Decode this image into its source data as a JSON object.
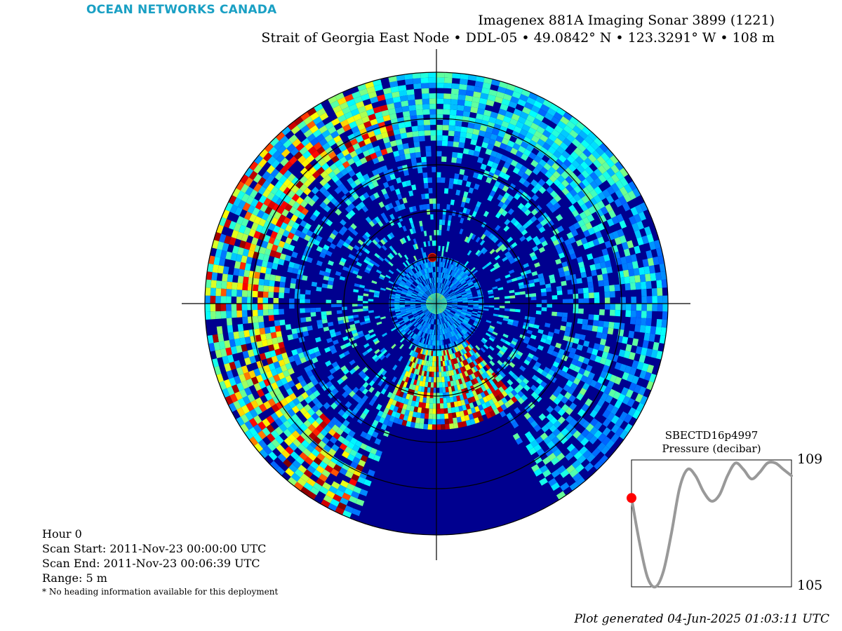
{
  "brand": {
    "logo_text": "OCEAN NETWORKS CANADA",
    "color": "#1aa0c4"
  },
  "header": {
    "title": "Imagenex 881A Imaging Sonar 3899 (1221)",
    "subtitle": "Strait of Georgia East Node • DDL-05 • 49.0842° N • 123.3291° W • 108 m"
  },
  "info": {
    "hour": "Hour 0",
    "scan_start": "Scan Start: 2011-Nov-23 00:00:00 UTC",
    "scan_end": "Scan End: 2011-Nov-23 00:06:39 UTC",
    "range": "Range: 5 m",
    "note": "* No heading information available for this deployment"
  },
  "footer": {
    "generated": "Plot generated 04-Jun-2025 01:03:11 UTC"
  },
  "chart_data": [
    {
      "type": "heatmap",
      "subtype": "polar sonar intensity",
      "range_m": 5,
      "colormap": "jet",
      "background_color": "#00008f",
      "range_rings": 5,
      "crosshair": true,
      "features": [
        {
          "description": "high-intensity returns",
          "bearing_from_deg": 140,
          "bearing_to_deg": 205,
          "range_from": 0.2,
          "range_to": 0.55
        },
        {
          "description": "scattered returns band",
          "bearing_from_deg": 205,
          "bearing_to_deg": 345,
          "range_from": 0.7,
          "range_to": 1.0
        },
        {
          "description": "point target",
          "bearing_deg": 355,
          "range": 0.2
        }
      ]
    },
    {
      "type": "line",
      "title": "SBECTD16p4997",
      "ylabel": "Pressure (decibar)",
      "ylim": [
        105,
        109
      ],
      "y_ticks": [
        "109",
        "105"
      ],
      "line_color": "#999999",
      "marker_color": "#ff0000",
      "marker_index": 0,
      "x": [
        0,
        1,
        2,
        3,
        4,
        5,
        6,
        7,
        8,
        9,
        10,
        11,
        12,
        13,
        14,
        15,
        16,
        17,
        18,
        19,
        20
      ],
      "values": [
        107.8,
        106.4,
        105.3,
        105.0,
        105.5,
        106.7,
        108.1,
        108.7,
        108.5,
        108.0,
        107.7,
        107.9,
        108.5,
        108.9,
        108.7,
        108.4,
        108.6,
        108.9,
        108.9,
        108.7,
        108.5
      ]
    }
  ]
}
